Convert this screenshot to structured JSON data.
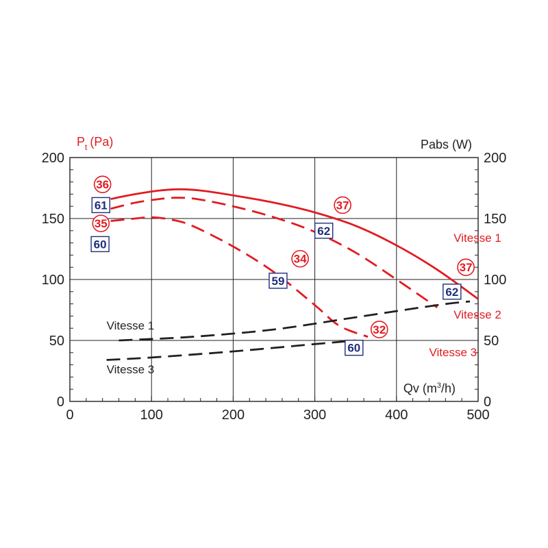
{
  "colors": {
    "red": "#e11b22",
    "black": "#231f20",
    "blue": "#1f2d7a",
    "grid": "#231f20"
  },
  "chart_data": {
    "type": "line",
    "left_axis_title": {
      "main": "P",
      "sub": "t",
      "unit": "(Pa)"
    },
    "right_axis_title": "Pabs (W)",
    "xlabel": {
      "main": "Qv (m",
      "sup": "3",
      "tail": "/h)"
    },
    "xlim": [
      0,
      500
    ],
    "ylim": [
      0,
      200
    ],
    "x_ticks": [
      0,
      100,
      200,
      300,
      400,
      500
    ],
    "y_ticks": [
      0,
      50,
      100,
      150,
      200
    ],
    "series": [
      {
        "name": "Vitesse 1",
        "axis": "pressure",
        "style": "solid",
        "color": "#e11b22",
        "points": [
          [
            50,
            166
          ],
          [
            80,
            170
          ],
          [
            110,
            173
          ],
          [
            135,
            174
          ],
          [
            160,
            173
          ],
          [
            200,
            169
          ],
          [
            250,
            163
          ],
          [
            300,
            155
          ],
          [
            350,
            144
          ],
          [
            400,
            128
          ],
          [
            450,
            108
          ],
          [
            500,
            84
          ]
        ]
      },
      {
        "name": "Vitesse 2",
        "axis": "pressure",
        "style": "dashed",
        "color": "#e11b22",
        "points": [
          [
            50,
            158
          ],
          [
            80,
            163
          ],
          [
            110,
            166
          ],
          [
            130,
            167
          ],
          [
            155,
            166
          ],
          [
            200,
            160
          ],
          [
            250,
            151
          ],
          [
            300,
            139
          ],
          [
            350,
            122
          ],
          [
            400,
            100
          ],
          [
            450,
            77
          ]
        ]
      },
      {
        "name": "Vitesse 3",
        "axis": "pressure",
        "style": "dashed",
        "color": "#e11b22",
        "points": [
          [
            50,
            148
          ],
          [
            80,
            150
          ],
          [
            100,
            151
          ],
          [
            125,
            149
          ],
          [
            150,
            144
          ],
          [
            200,
            127
          ],
          [
            250,
            106
          ],
          [
            300,
            79
          ],
          [
            330,
            62
          ],
          [
            365,
            53
          ]
        ]
      },
      {
        "name": "Vitesse 1",
        "axis": "power",
        "style": "dashed",
        "color": "#231f20",
        "points": [
          [
            60,
            50
          ],
          [
            150,
            53
          ],
          [
            250,
            59
          ],
          [
            350,
            69
          ],
          [
            450,
            79
          ],
          [
            490,
            82
          ]
        ]
      },
      {
        "name": "Vitesse 3",
        "axis": "power",
        "style": "dashed",
        "color": "#231f20",
        "points": [
          [
            45,
            34
          ],
          [
            100,
            36
          ],
          [
            200,
            41
          ],
          [
            300,
            47
          ],
          [
            350,
            50
          ]
        ]
      }
    ],
    "curve_labels": [
      {
        "text": "Vitesse 1",
        "x": 470,
        "y": 131,
        "color": "#e11b22"
      },
      {
        "text": "Vitesse 2",
        "x": 470,
        "y": 68,
        "color": "#e11b22"
      },
      {
        "text": "Vitesse 3",
        "x": 440,
        "y": 37,
        "color": "#e11b22"
      },
      {
        "text": "Vitesse 1",
        "x": 45,
        "y": 59,
        "color": "#231f20"
      },
      {
        "text": "Vitesse 3",
        "x": 45,
        "y": 23,
        "color": "#231f20"
      }
    ],
    "circle_annotations": [
      {
        "text": "36",
        "x": 40,
        "y": 178
      },
      {
        "text": "35",
        "x": 38,
        "y": 146
      },
      {
        "text": "37",
        "x": 334,
        "y": 161
      },
      {
        "text": "34",
        "x": 282,
        "y": 117
      },
      {
        "text": "37",
        "x": 485,
        "y": 110
      },
      {
        "text": "32",
        "x": 379,
        "y": 59
      }
    ],
    "box_annotations": [
      {
        "text": "61",
        "x": 38,
        "y": 161
      },
      {
        "text": "60",
        "x": 37,
        "y": 129
      },
      {
        "text": "62",
        "x": 311,
        "y": 140
      },
      {
        "text": "59",
        "x": 255,
        "y": 99
      },
      {
        "text": "62",
        "x": 468,
        "y": 90
      },
      {
        "text": "60",
        "x": 348,
        "y": 44
      }
    ]
  }
}
